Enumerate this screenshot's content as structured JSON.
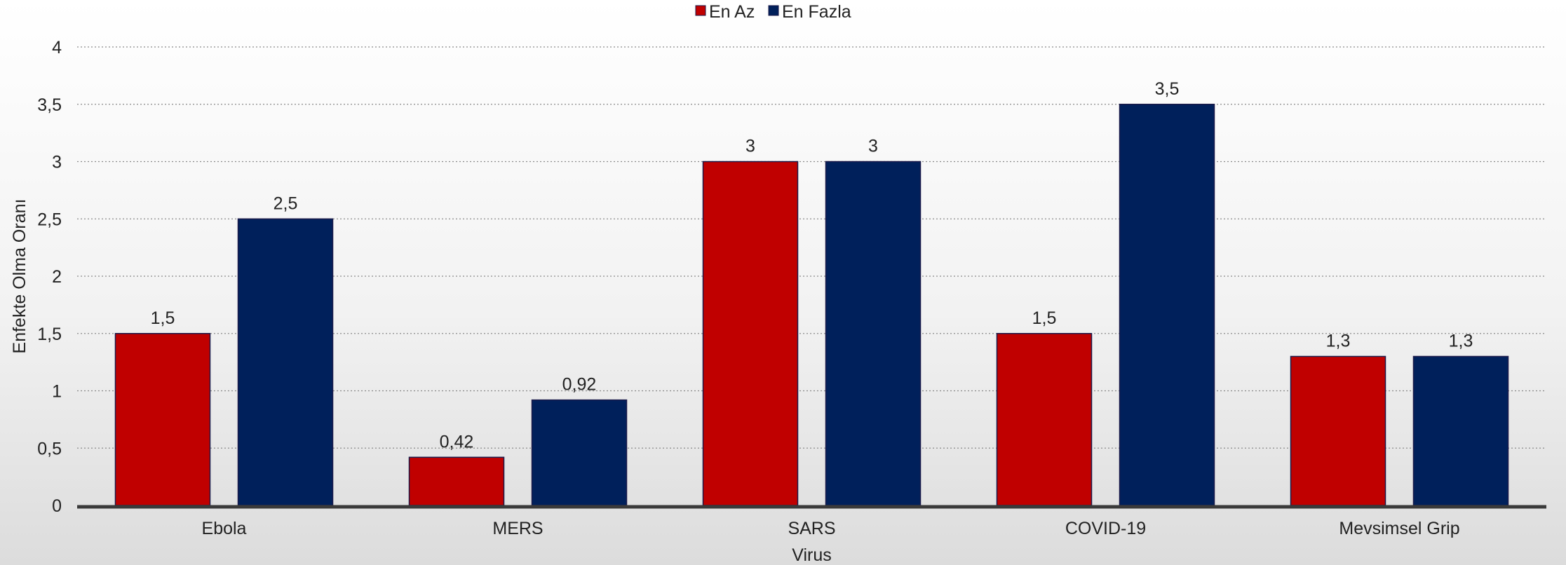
{
  "chart_data": {
    "type": "bar",
    "categories": [
      "Ebola",
      "MERS",
      "SARS",
      "COVID-19",
      "Mevsimsel Grip"
    ],
    "series": [
      {
        "name": "En Az",
        "values": [
          1.5,
          0.42,
          3,
          1.5,
          1.3
        ],
        "color": "#c00000"
      },
      {
        "name": "En Fazla",
        "values": [
          2.5,
          0.92,
          3,
          3.5,
          1.3
        ],
        "color": "#00205b"
      }
    ],
    "data_labels": [
      [
        "1,5",
        "0,42",
        "3",
        "1,5",
        "1,3"
      ],
      [
        "2,5",
        "0,92",
        "3",
        "3,5",
        "1,3"
      ]
    ],
    "yticks": [
      "0",
      "0,5",
      "1",
      "1,5",
      "2",
      "2,5",
      "3",
      "3,5",
      "4"
    ],
    "ylim": [
      0,
      4
    ],
    "xlabel": "Virus",
    "ylabel": "Enfekte Olma Oranı",
    "grid": true,
    "legend_position": "top-center"
  }
}
